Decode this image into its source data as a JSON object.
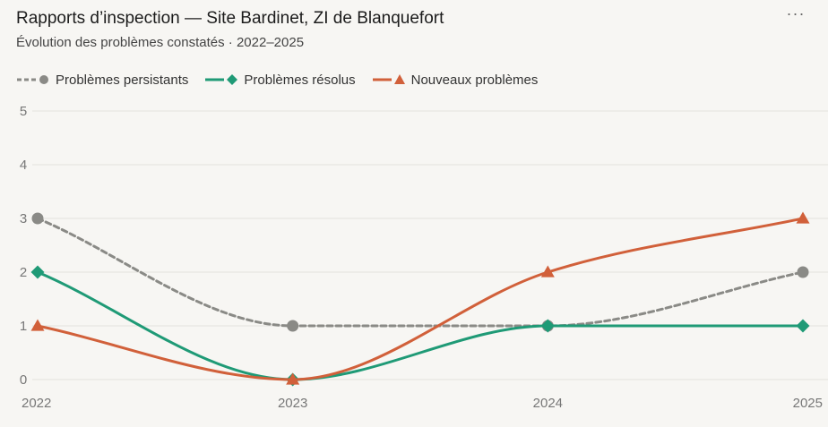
{
  "header": {
    "title": "Rapports d’inspection — Site Bardinet, ZI de Blanquefort",
    "subtitle": "Évolution des problèmes constatés · 2022–2025",
    "menu_label": "···"
  },
  "colors": {
    "background": "#f7f6f3",
    "gridline": "#e3e2de",
    "axis_text": "#777777",
    "persistants": "#8a8a86",
    "resolus": "#1f9a76",
    "nouveaux": "#d1603a"
  },
  "chart_data": {
    "type": "line",
    "title": "Rapports d’inspection — Site Bardinet, ZI de Blanquefort",
    "subtitle": "Évolution des problèmes constatés · 2022–2025",
    "xlabel": "",
    "ylabel": "",
    "x": [
      "2022",
      "2023",
      "2024",
      "2025"
    ],
    "yticks": [
      "0",
      "1",
      "2",
      "3",
      "4",
      "5"
    ],
    "ylim": [
      0,
      5
    ],
    "grid": true,
    "legend_position": "top-left",
    "series": [
      {
        "name": "Problèmes persistants",
        "values": [
          3,
          1,
          1,
          2
        ],
        "marker": "circle",
        "dash": "dashed",
        "color_key": "persistants"
      },
      {
        "name": "Problèmes résolus",
        "values": [
          2,
          0,
          1,
          1
        ],
        "marker": "diamond",
        "dash": "solid",
        "color_key": "resolus"
      },
      {
        "name": "Nouveaux problèmes",
        "values": [
          1,
          0,
          2,
          3
        ],
        "marker": "triangle",
        "dash": "solid",
        "color_key": "nouveaux"
      }
    ]
  }
}
